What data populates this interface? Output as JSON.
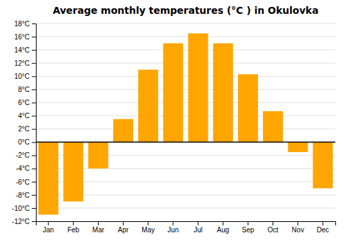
{
  "chart_data": {
    "type": "bar",
    "title": "Average monthly temperatures (°C ) in Okulovka",
    "categories": [
      "Jan",
      "Feb",
      "Mar",
      "Apr",
      "May",
      "Jun",
      "Jul",
      "Aug",
      "Sep",
      "Oct",
      "Nov",
      "Dec"
    ],
    "values": [
      -11,
      -9,
      -4,
      3.5,
      11,
      15,
      16.5,
      15,
      10.3,
      4.7,
      -1.5,
      -7
    ],
    "color": "#FFA500",
    "ylim": [
      -12,
      18
    ],
    "yticks": [
      {
        "value": -12,
        "label": "-12°C"
      },
      {
        "value": -10,
        "label": "-10°C"
      },
      {
        "value": -8,
        "label": "-8°C"
      },
      {
        "value": -6,
        "label": "-6°C"
      },
      {
        "value": -4,
        "label": "-4°C"
      },
      {
        "value": -2,
        "label": "-2°C"
      },
      {
        "value": 0,
        "label": "0°C"
      },
      {
        "value": 2,
        "label": "2°C"
      },
      {
        "value": 4,
        "label": "4°C"
      },
      {
        "value": 6,
        "label": "6°C"
      },
      {
        "value": 8,
        "label": "8°C"
      },
      {
        "value": 10,
        "label": "10°C"
      },
      {
        "value": 12,
        "label": "12°C"
      },
      {
        "value": 14,
        "label": "14°C"
      },
      {
        "value": 16,
        "label": "16°C"
      },
      {
        "value": 18,
        "label": "18°C"
      }
    ],
    "grid": true
  }
}
